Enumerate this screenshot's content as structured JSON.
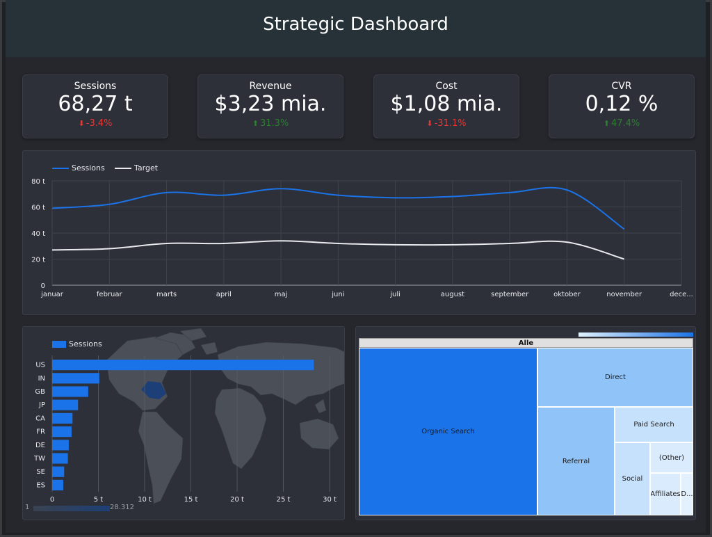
{
  "header": {
    "title": "Strategic Dashboard"
  },
  "kpis": [
    {
      "label": "Sessions",
      "value": "68,27 t",
      "delta": "-3.4%",
      "direction": "down"
    },
    {
      "label": "Revenue",
      "value": "$3,23 mia.",
      "delta": "31.3%",
      "direction": "up"
    },
    {
      "label": "Cost",
      "value": "$1,08 mia.",
      "delta": "-31.1%",
      "direction": "down"
    },
    {
      "label": "CVR",
      "value": "0,12 %",
      "delta": "47.4%",
      "direction": "up"
    }
  ],
  "colors": {
    "header_bg": "#263238",
    "sessions_line": "#1a73e8",
    "target_line": "#e8eaed",
    "negative": "#e53935",
    "positive": "#2e7d32",
    "bar": "#1a73e8"
  },
  "chart_data": [
    {
      "type": "line",
      "legend": [
        "Sessions",
        "Target"
      ],
      "categories": [
        "januar",
        "februar",
        "marts",
        "april",
        "maj",
        "juni",
        "juli",
        "august",
        "september",
        "oktober",
        "november",
        "dece..."
      ],
      "series": [
        {
          "name": "Sessions",
          "values": [
            59,
            62,
            71,
            69,
            74,
            69,
            67,
            68,
            71,
            73,
            43,
            null
          ]
        },
        {
          "name": "Target",
          "values": [
            27,
            28,
            32,
            32,
            34,
            32,
            31,
            31,
            32,
            33,
            20,
            null
          ]
        }
      ],
      "y_ticks": [
        "0",
        "20 t",
        "40 t",
        "60 t",
        "80 t"
      ],
      "ylim": [
        0,
        80
      ],
      "grid": true
    },
    {
      "type": "bar",
      "orientation": "horizontal",
      "legend": [
        "Sessions"
      ],
      "categories": [
        "US",
        "IN",
        "GB",
        "JP",
        "CA",
        "FR",
        "DE",
        "TW",
        "SE",
        "ES"
      ],
      "values": [
        28.3,
        5.1,
        3.9,
        2.8,
        2.2,
        2.1,
        1.8,
        1.7,
        1.3,
        1.2
      ],
      "x_ticks": [
        "0",
        "5 t",
        "10 t",
        "15 t",
        "20 t",
        "25 t",
        "30 t"
      ],
      "xlim": [
        0,
        30
      ],
      "map_scale": {
        "min_label": "1",
        "max_label": "28.312"
      }
    },
    {
      "type": "treemap",
      "root": "Alle",
      "cells": [
        {
          "label": "Organic Search",
          "color": "#1a73e8"
        },
        {
          "label": "Direct",
          "color": "#90c4f8"
        },
        {
          "label": "Referral",
          "color": "#90c4f8"
        },
        {
          "label": "Paid Search",
          "color": "#c6e1fc"
        },
        {
          "label": "Social",
          "color": "#c6e1fc"
        },
        {
          "label": "(Other)",
          "color": "#d9ebfd"
        },
        {
          "label": "Affiliates",
          "color": "#d9ebfd"
        },
        {
          "label": "D...",
          "color": "#e3f0fe"
        }
      ]
    }
  ]
}
